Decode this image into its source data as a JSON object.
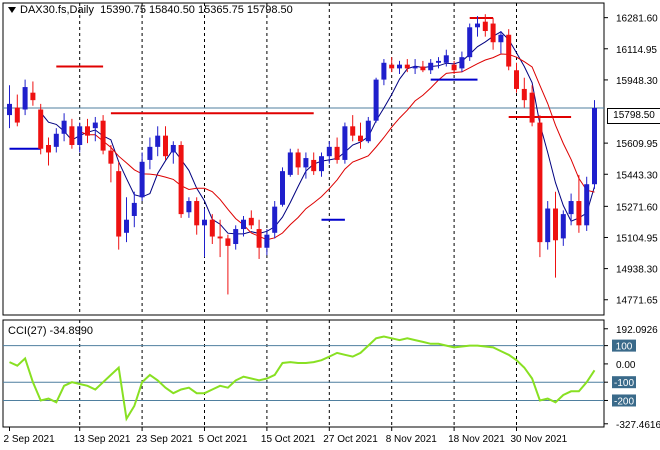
{
  "main_title": {
    "symbol": "DAX30.fs,Daily",
    "ohlc": "15390.75 15840.50 15365.75 15798.50"
  },
  "cci_title": "CCI(27) -34.8990",
  "current_price_label": "15798.50",
  "colors": {
    "bull": "#1f1fcc",
    "bear": "#ee1111",
    "fast_ma": "#000080",
    "slow_ma": "#dd0000",
    "cci": "#88e022",
    "level_line": "#4f7f9f",
    "grid": "#000000",
    "hline": "#d00000",
    "resistance": "#e00000",
    "support": "#0000cc"
  },
  "chart_data": [
    {
      "type": "candlestick",
      "ylim": [
        14690,
        16360
      ],
      "y_ticks": [
        "16281.60",
        "16114.95",
        "15948.30",
        "15609.95",
        "15443.30",
        "15271.60",
        "15104.95",
        "14938.30",
        "14771.65"
      ],
      "y_tick_values": [
        16281.6,
        16114.95,
        15948.3,
        15609.95,
        15443.3,
        15271.6,
        15104.95,
        14938.3,
        14771.65
      ],
      "x_ticks": [
        {
          "label": "2 Sep 2021",
          "index": 0
        },
        {
          "label": "13 Sep 2021",
          "index": 9
        },
        {
          "label": "23 Sep 2021",
          "index": 17
        },
        {
          "label": "5 Oct 2021",
          "index": 25
        },
        {
          "label": "15 Oct 2021",
          "index": 33
        },
        {
          "label": "27 Oct 2021",
          "index": 41
        },
        {
          "label": "8 Nov 2021",
          "index": 49
        },
        {
          "label": "18 Nov 2021",
          "index": 57
        },
        {
          "label": "30 Nov 2021",
          "index": 65
        }
      ],
      "candles": [
        {
          "o": 15760,
          "h": 15920,
          "l": 15690,
          "c": 15820
        },
        {
          "o": 15800,
          "h": 15870,
          "l": 15700,
          "c": 15720
        },
        {
          "o": 15790,
          "h": 15950,
          "l": 15760,
          "c": 15910
        },
        {
          "o": 15880,
          "h": 15940,
          "l": 15810,
          "c": 15840
        },
        {
          "o": 15790,
          "h": 15820,
          "l": 15550,
          "c": 15580
        },
        {
          "o": 15600,
          "h": 15640,
          "l": 15490,
          "c": 15560
        },
        {
          "o": 15590,
          "h": 15690,
          "l": 15560,
          "c": 15660
        },
        {
          "o": 15660,
          "h": 15770,
          "l": 15620,
          "c": 15730
        },
        {
          "o": 15700,
          "h": 15740,
          "l": 15580,
          "c": 15600
        },
        {
          "o": 15600,
          "h": 15720,
          "l": 15560,
          "c": 15700
        },
        {
          "o": 15700,
          "h": 15740,
          "l": 15610,
          "c": 15650
        },
        {
          "o": 15690,
          "h": 15750,
          "l": 15620,
          "c": 15720
        },
        {
          "o": 15730,
          "h": 15760,
          "l": 15550,
          "c": 15570
        },
        {
          "o": 15570,
          "h": 15600,
          "l": 15400,
          "c": 15500
        },
        {
          "o": 15460,
          "h": 15510,
          "l": 15040,
          "c": 15110
        },
        {
          "o": 15130,
          "h": 15320,
          "l": 15080,
          "c": 15200
        },
        {
          "o": 15220,
          "h": 15350,
          "l": 15160,
          "c": 15290
        },
        {
          "o": 15320,
          "h": 15560,
          "l": 15300,
          "c": 15510
        },
        {
          "o": 15520,
          "h": 15640,
          "l": 15470,
          "c": 15590
        },
        {
          "o": 15590,
          "h": 15700,
          "l": 15540,
          "c": 15650
        },
        {
          "o": 15650,
          "h": 15700,
          "l": 15520,
          "c": 15540
        },
        {
          "o": 15560,
          "h": 15620,
          "l": 15500,
          "c": 15600
        },
        {
          "o": 15600,
          "h": 15620,
          "l": 15210,
          "c": 15230
        },
        {
          "o": 15240,
          "h": 15320,
          "l": 15210,
          "c": 15300
        },
        {
          "o": 15300,
          "h": 15320,
          "l": 15120,
          "c": 15170
        },
        {
          "o": 15170,
          "h": 15260,
          "l": 15000,
          "c": 15200
        },
        {
          "o": 15200,
          "h": 15230,
          "l": 15070,
          "c": 15110
        },
        {
          "o": 15110,
          "h": 15200,
          "l": 15000,
          "c": 15100
        },
        {
          "o": 15100,
          "h": 15120,
          "l": 14800,
          "c": 15060
        },
        {
          "o": 15070,
          "h": 15170,
          "l": 15040,
          "c": 15150
        },
        {
          "o": 15150,
          "h": 15220,
          "l": 15110,
          "c": 15200
        },
        {
          "o": 15210,
          "h": 15250,
          "l": 15150,
          "c": 15170
        },
        {
          "o": 15150,
          "h": 15200,
          "l": 14990,
          "c": 15050
        },
        {
          "o": 15050,
          "h": 15150,
          "l": 15010,
          "c": 15120
        },
        {
          "o": 15130,
          "h": 15300,
          "l": 15100,
          "c": 15270
        },
        {
          "o": 15280,
          "h": 15480,
          "l": 15270,
          "c": 15460
        },
        {
          "o": 15440,
          "h": 15580,
          "l": 15430,
          "c": 15560
        },
        {
          "o": 15560,
          "h": 15580,
          "l": 15440,
          "c": 15480
        },
        {
          "o": 15480,
          "h": 15560,
          "l": 15420,
          "c": 15530
        },
        {
          "o": 15520,
          "h": 15560,
          "l": 15440,
          "c": 15460
        },
        {
          "o": 15460,
          "h": 15560,
          "l": 15430,
          "c": 15540
        },
        {
          "o": 15540,
          "h": 15620,
          "l": 15500,
          "c": 15590
        },
        {
          "o": 15590,
          "h": 15640,
          "l": 15500,
          "c": 15520
        },
        {
          "o": 15520,
          "h": 15720,
          "l": 15500,
          "c": 15700
        },
        {
          "o": 15700,
          "h": 15760,
          "l": 15620,
          "c": 15650
        },
        {
          "o": 15650,
          "h": 15720,
          "l": 15580,
          "c": 15620
        },
        {
          "o": 15620,
          "h": 15750,
          "l": 15610,
          "c": 15730
        },
        {
          "o": 15730,
          "h": 15960,
          "l": 15720,
          "c": 15950
        },
        {
          "o": 15950,
          "h": 16060,
          "l": 15920,
          "c": 16040
        },
        {
          "o": 16030,
          "h": 16070,
          "l": 15990,
          "c": 16010
        },
        {
          "o": 16010,
          "h": 16050,
          "l": 15980,
          "c": 16030
        },
        {
          "o": 16030,
          "h": 16060,
          "l": 15990,
          "c": 16010
        },
        {
          "o": 16010,
          "h": 16060,
          "l": 15980,
          "c": 16020
        },
        {
          "o": 16020,
          "h": 16050,
          "l": 15990,
          "c": 16000
        },
        {
          "o": 16000,
          "h": 16060,
          "l": 15980,
          "c": 16040
        },
        {
          "o": 16040,
          "h": 16070,
          "l": 16010,
          "c": 16050
        },
        {
          "o": 16040,
          "h": 16110,
          "l": 16020,
          "c": 16080
        },
        {
          "o": 16030,
          "h": 16050,
          "l": 15980,
          "c": 16000
        },
        {
          "o": 16010,
          "h": 16100,
          "l": 15990,
          "c": 16070
        },
        {
          "o": 16070,
          "h": 16250,
          "l": 16050,
          "c": 16230
        },
        {
          "o": 16230,
          "h": 16290,
          "l": 16180,
          "c": 16250
        },
        {
          "o": 16260,
          "h": 16300,
          "l": 16180,
          "c": 16210
        },
        {
          "o": 16250,
          "h": 16280,
          "l": 16110,
          "c": 16150
        },
        {
          "o": 16150,
          "h": 16210,
          "l": 16090,
          "c": 16190
        },
        {
          "o": 16190,
          "h": 16220,
          "l": 16000,
          "c": 16020
        },
        {
          "o": 16000,
          "h": 16040,
          "l": 15880,
          "c": 15900
        },
        {
          "o": 15900,
          "h": 15960,
          "l": 15800,
          "c": 15840
        },
        {
          "o": 15880,
          "h": 15920,
          "l": 15700,
          "c": 15720
        },
        {
          "o": 15720,
          "h": 15760,
          "l": 15000,
          "c": 15080
        },
        {
          "o": 15080,
          "h": 15300,
          "l": 15040,
          "c": 15260
        },
        {
          "o": 15260,
          "h": 15350,
          "l": 14890,
          "c": 15090
        },
        {
          "o": 15100,
          "h": 15250,
          "l": 15060,
          "c": 15230
        },
        {
          "o": 15230,
          "h": 15340,
          "l": 15170,
          "c": 15300
        },
        {
          "o": 15300,
          "h": 15440,
          "l": 15130,
          "c": 15170
        },
        {
          "o": 15170,
          "h": 15430,
          "l": 15140,
          "c": 15390
        },
        {
          "o": 15390,
          "h": 15840,
          "l": 15365,
          "c": 15798
        }
      ]
    },
    {
      "type": "line",
      "ylim": [
        -345,
        240
      ],
      "y_ticks": [
        "192.0926",
        "100",
        "0.00",
        "-100",
        "-200",
        "-327.4616"
      ],
      "y_tick_values": [
        192.0926,
        100,
        0,
        -100,
        -200,
        -327.4616
      ],
      "highlighted_levels": [
        100,
        -100,
        -200
      ],
      "values": [
        10,
        -10,
        30,
        -100,
        -200,
        -190,
        -210,
        -120,
        -100,
        -110,
        -120,
        -140,
        -100,
        -60,
        -20,
        -300,
        -230,
        -100,
        -60,
        -90,
        -130,
        -160,
        -140,
        -130,
        -160,
        -160,
        -140,
        -120,
        -130,
        -90,
        -70,
        -80,
        -90,
        -80,
        -60,
        5,
        10,
        5,
        5,
        10,
        20,
        40,
        60,
        50,
        40,
        60,
        100,
        140,
        150,
        140,
        130,
        140,
        130,
        120,
        110,
        110,
        100,
        90,
        95,
        100,
        100,
        95,
        90,
        70,
        50,
        20,
        -20,
        -80,
        -200,
        -190,
        -210,
        -170,
        -150,
        -150,
        -100,
        -35
      ]
    }
  ]
}
